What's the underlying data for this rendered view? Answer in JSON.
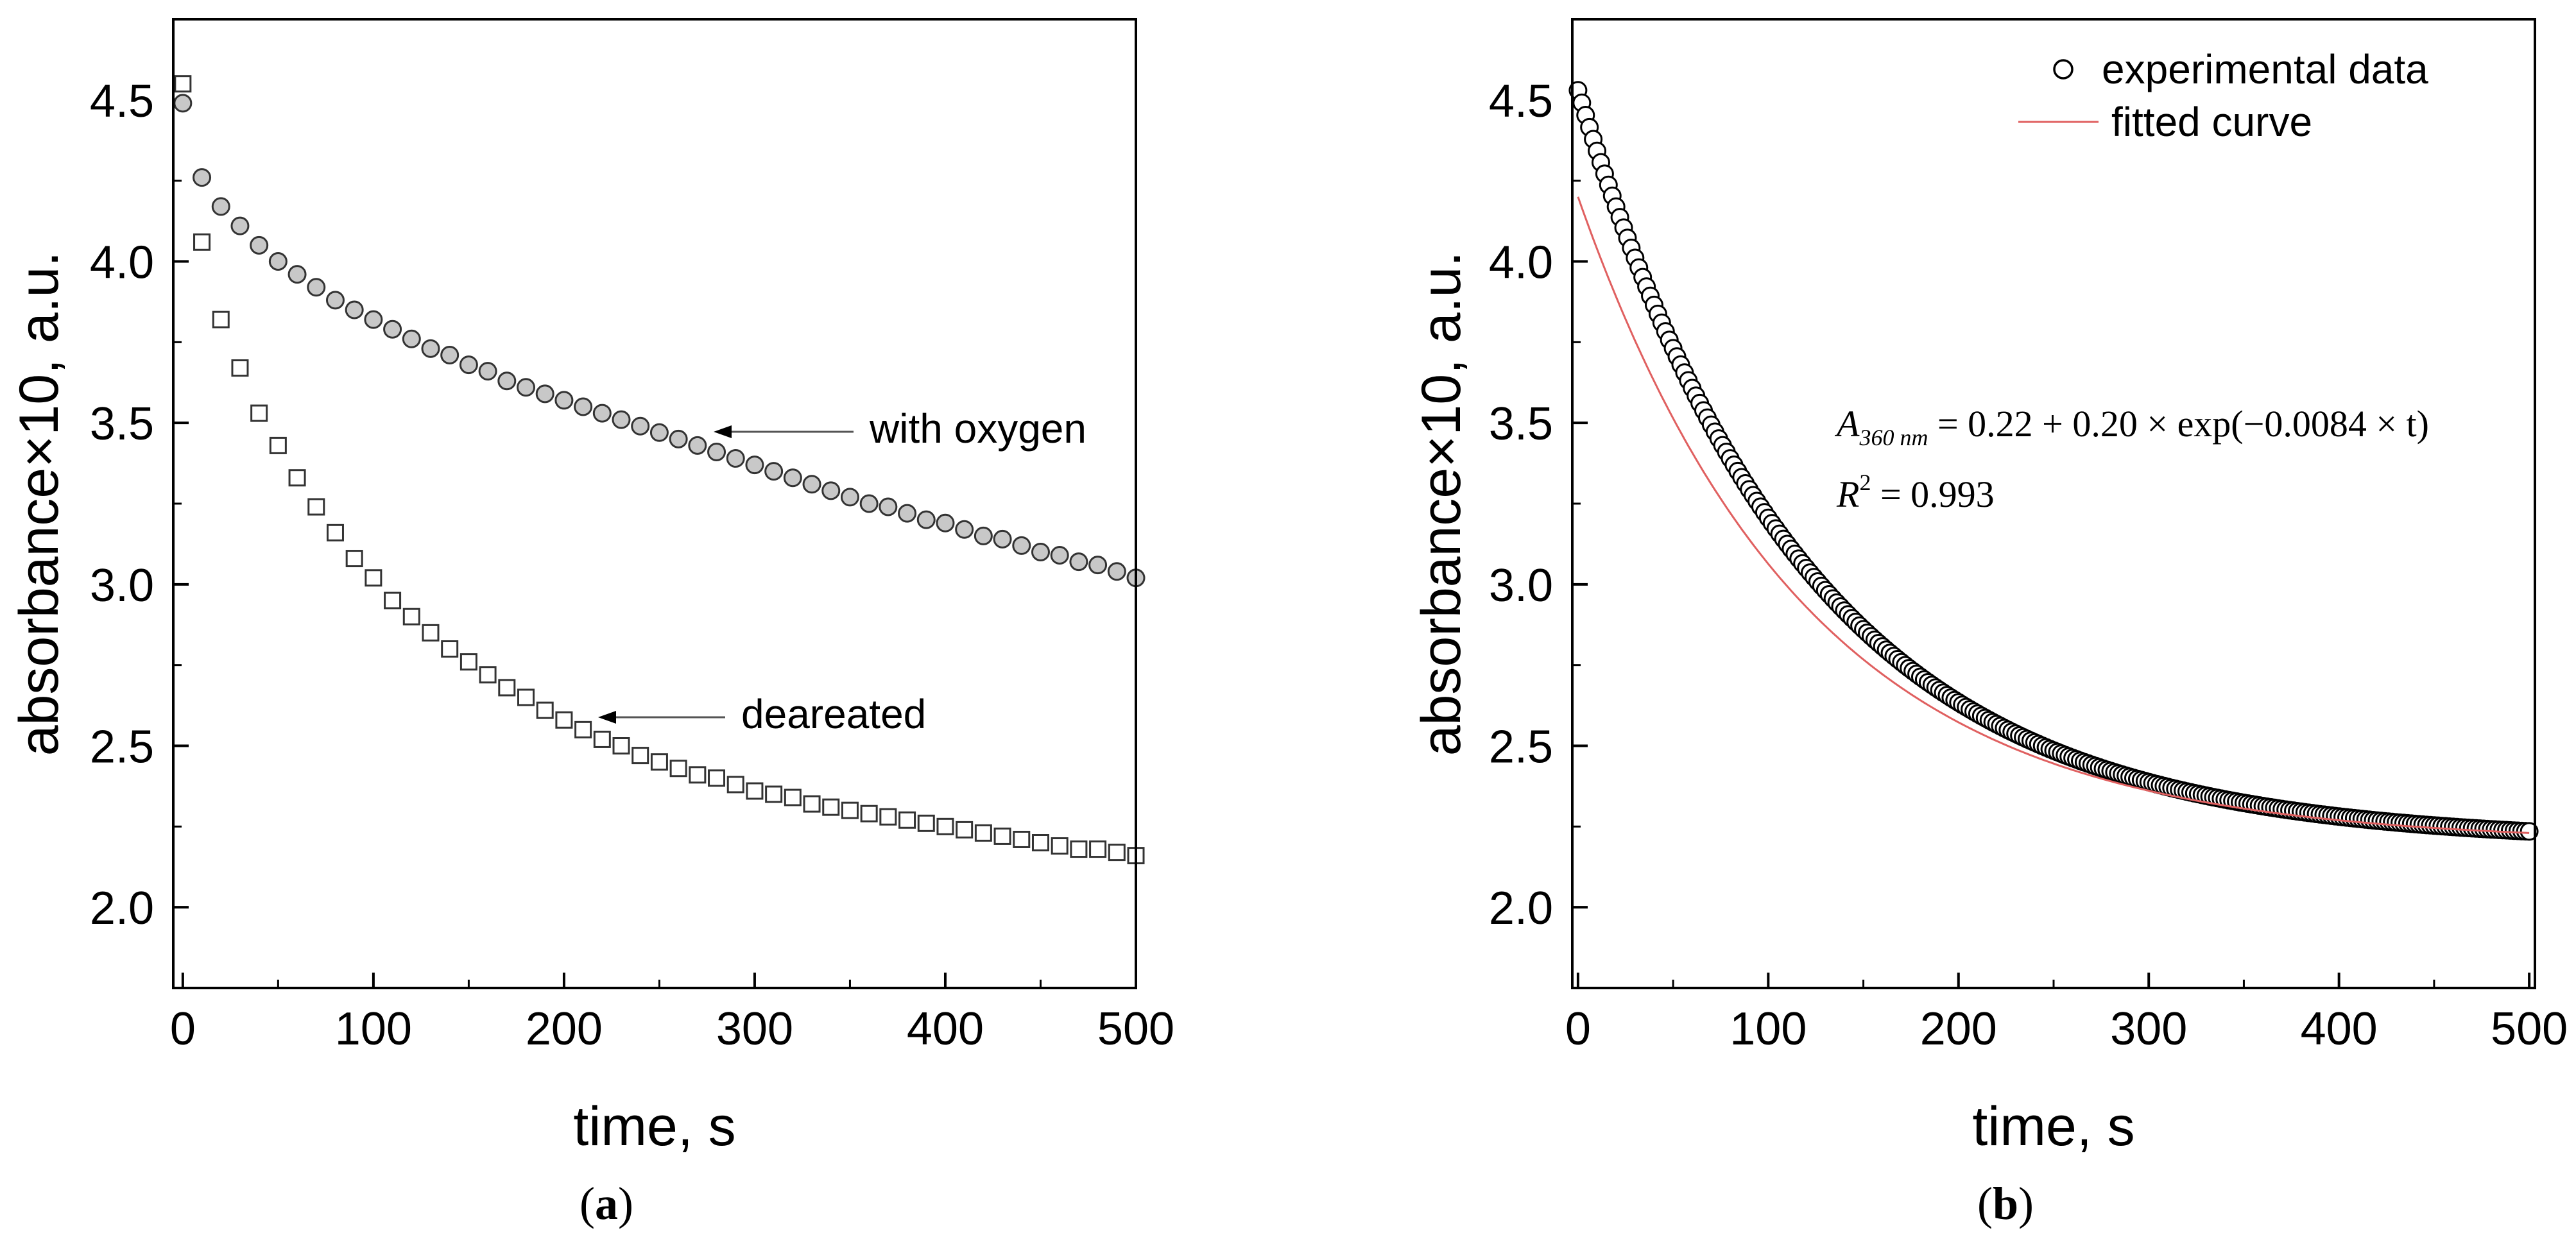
{
  "chart_data": [
    {
      "panel": "a",
      "panel_label": "(a)",
      "panel_label_parts": [
        "(",
        "a",
        ")"
      ],
      "type": "scatter",
      "xlabel": "time, s",
      "ylabel": "absorbance×10, a.u.",
      "xlim": [
        -5,
        500
      ],
      "ylim": [
        1.75,
        4.75
      ],
      "xticks": [
        0,
        100,
        200,
        300,
        400,
        500
      ],
      "xtick_labels": [
        "0",
        "100",
        "200",
        "300",
        "400",
        "500"
      ],
      "yticks": [
        2.0,
        2.5,
        3.0,
        3.5,
        4.0,
        4.5
      ],
      "ytick_labels": [
        "2.0",
        "2.5",
        "3.0",
        "3.5",
        "4.0",
        "4.5"
      ],
      "series": [
        {
          "name": "with oxygen",
          "marker": "circle-filled",
          "x": [
            0,
            10,
            20,
            30,
            40,
            50,
            60,
            70,
            80,
            90,
            100,
            110,
            120,
            130,
            140,
            150,
            160,
            170,
            180,
            190,
            200,
            210,
            220,
            230,
            240,
            250,
            260,
            270,
            280,
            290,
            300,
            310,
            320,
            330,
            340,
            350,
            360,
            370,
            380,
            390,
            400,
            410,
            420,
            430,
            440,
            450,
            460,
            470,
            480,
            490,
            500
          ],
          "y": [
            4.49,
            4.26,
            4.17,
            4.11,
            4.05,
            4.0,
            3.96,
            3.92,
            3.88,
            3.85,
            3.82,
            3.79,
            3.76,
            3.73,
            3.71,
            3.68,
            3.66,
            3.63,
            3.61,
            3.59,
            3.57,
            3.55,
            3.53,
            3.51,
            3.49,
            3.47,
            3.45,
            3.43,
            3.41,
            3.39,
            3.37,
            3.35,
            3.33,
            3.31,
            3.29,
            3.27,
            3.25,
            3.24,
            3.22,
            3.2,
            3.19,
            3.17,
            3.15,
            3.14,
            3.12,
            3.1,
            3.09,
            3.07,
            3.06,
            3.04,
            3.02
          ]
        },
        {
          "name": "deareated",
          "marker": "square-open",
          "x": [
            0,
            10,
            20,
            30,
            40,
            50,
            60,
            70,
            80,
            90,
            100,
            110,
            120,
            130,
            140,
            150,
            160,
            170,
            180,
            190,
            200,
            210,
            220,
            230,
            240,
            250,
            260,
            270,
            280,
            290,
            300,
            310,
            320,
            330,
            340,
            350,
            360,
            370,
            380,
            390,
            400,
            410,
            420,
            430,
            440,
            450,
            460,
            470,
            480,
            490,
            500
          ],
          "y": [
            4.55,
            4.06,
            3.82,
            3.67,
            3.53,
            3.43,
            3.33,
            3.24,
            3.16,
            3.08,
            3.02,
            2.95,
            2.9,
            2.85,
            2.8,
            2.76,
            2.72,
            2.68,
            2.65,
            2.61,
            2.58,
            2.55,
            2.52,
            2.5,
            2.47,
            2.45,
            2.43,
            2.41,
            2.4,
            2.38,
            2.36,
            2.35,
            2.34,
            2.32,
            2.31,
            2.3,
            2.29,
            2.28,
            2.27,
            2.26,
            2.25,
            2.24,
            2.23,
            2.22,
            2.21,
            2.2,
            2.19,
            2.18,
            2.18,
            2.17,
            2.16
          ]
        }
      ],
      "annotations": [
        {
          "text": "with oxygen",
          "target_series": "with oxygen",
          "target_x": 280,
          "target_y": 3.47
        },
        {
          "text": "deareated",
          "target_series": "deareated",
          "target_x": 220,
          "target_y": 2.59
        }
      ]
    },
    {
      "panel": "b",
      "panel_label": "(b)",
      "panel_label_parts": [
        "(",
        "b",
        ")"
      ],
      "type": "scatter",
      "xlabel": "time, s",
      "ylabel": "absorbance×10, a.u.",
      "xlim": [
        -3,
        503
      ],
      "ylim": [
        1.75,
        4.75
      ],
      "xticks": [
        0,
        100,
        200,
        300,
        400,
        500
      ],
      "xtick_labels": [
        "0",
        "100",
        "200",
        "300",
        "400",
        "500"
      ],
      "yticks": [
        2.0,
        2.5,
        3.0,
        3.5,
        4.0,
        4.5
      ],
      "ytick_labels": [
        "2.0",
        "2.5",
        "3.0",
        "3.5",
        "4.0",
        "4.5"
      ],
      "legend": {
        "position": "top-right",
        "entries": [
          "experimental data",
          "fitted curve"
        ]
      },
      "series": [
        {
          "name": "experimental data",
          "marker": "circle-open",
          "x_start": 0,
          "x_end": 500,
          "x_step": 2,
          "model": "2.2 + 2.33*exp(-0.0084*t)"
        },
        {
          "name": "fitted curve",
          "color": "#e06060",
          "line": "solid",
          "x_start": 0,
          "x_end": 500,
          "model": "2.2 + 2.0*exp(-0.0084*t)"
        }
      ],
      "equation": {
        "lhs_symbol": "A",
        "lhs_subscript": "360 nm",
        "rhs": " = 0.22 + 0.20 × exp(−0.0084 × t)",
        "r2_symbol": "R",
        "r2_superscript": "2",
        "r2_rhs": " = 0.993"
      }
    }
  ],
  "colors": {
    "filled_marker": "#c8c8c8",
    "fit_line": "#e06060",
    "axis": "#000000"
  }
}
